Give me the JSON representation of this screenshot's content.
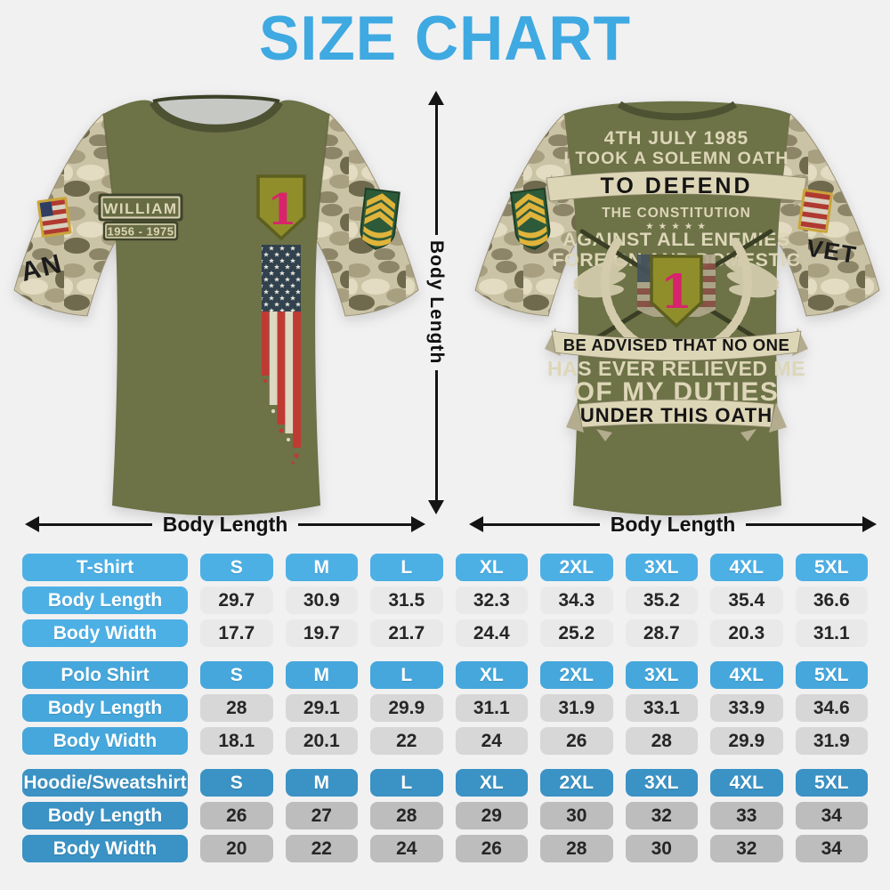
{
  "title": "SIZE CHART",
  "front_shirt": {
    "name_label": "WILLIAM",
    "years_label": "1956 - 1975",
    "division_number": "1",
    "sleeve_text": "AN"
  },
  "back_shirt": {
    "line_date": "4TH JULY 1985",
    "line_oath": "I TOOK A SOLEMN OATH",
    "ribbon_defend": "TO DEFEND",
    "line_constitution": "THE CONSTITUTION",
    "stars_row": "★ ★ ★ ★ ★",
    "line_enemies": "AGAINST ALL ENEMIES",
    "line_domestic": "FOREIGN AND DOMESTIC",
    "division_number": "1",
    "ribbon_advised": "BE ADVISED THAT NO ONE",
    "line_relieved": "HAS EVER RELIEVED ME",
    "line_duties": "OF MY DUTIES",
    "ribbon_oath": "UNDER THIS OATH",
    "sleeve_text": "VET"
  },
  "measurements": {
    "vertical_label": "Body Length",
    "front_horizontal_label": "Body Length",
    "back_horizontal_label": "Body Length"
  },
  "chart_data": [
    {
      "type": "table",
      "title": "T-shirt",
      "sizes": [
        "S",
        "M",
        "L",
        "XL",
        "2XL",
        "3XL",
        "4XL",
        "5XL"
      ],
      "rows": [
        {
          "label": "Body Length",
          "values": [
            "29.7",
            "30.9",
            "31.5",
            "32.3",
            "34.3",
            "35.2",
            "35.4",
            "36.6"
          ]
        },
        {
          "label": "Body Width",
          "values": [
            "17.7",
            "19.7",
            "21.7",
            "24.4",
            "25.2",
            "28.7",
            "20.3",
            "31.1"
          ]
        }
      ],
      "pill_color": "#4db0e5",
      "cell_color": "#e9e9e9"
    },
    {
      "type": "table",
      "title": "Polo Shirt",
      "sizes": [
        "S",
        "M",
        "L",
        "XL",
        "2XL",
        "3XL",
        "4XL",
        "5XL"
      ],
      "rows": [
        {
          "label": "Body Length",
          "values": [
            "28",
            "29.1",
            "29.9",
            "31.1",
            "31.9",
            "33.1",
            "33.9",
            "34.6"
          ]
        },
        {
          "label": "Body Width",
          "values": [
            "18.1",
            "20.1",
            "22",
            "24",
            "26",
            "28",
            "29.9",
            "31.9"
          ]
        }
      ],
      "pill_color": "#45a7dc",
      "cell_color": "#d7d7d7"
    },
    {
      "type": "table",
      "title": "Hoodie/Sweatshirt",
      "sizes": [
        "S",
        "M",
        "L",
        "XL",
        "2XL",
        "3XL",
        "4XL",
        "5XL"
      ],
      "rows": [
        {
          "label": "Body Length",
          "values": [
            "26",
            "27",
            "28",
            "29",
            "30",
            "32",
            "33",
            "34"
          ]
        },
        {
          "label": "Body Width",
          "values": [
            "20",
            "22",
            "24",
            "26",
            "28",
            "30",
            "32",
            "34"
          ]
        }
      ],
      "pill_color": "#3b92c4",
      "cell_color": "#bdbdbd"
    }
  ],
  "colors": {
    "title_blue": "#3fa9e1",
    "shirt_olive": "#6d7247",
    "cream": "#ddd6b8",
    "badge_pink": "#d8246d",
    "camo_base": "#cbc3a6"
  }
}
